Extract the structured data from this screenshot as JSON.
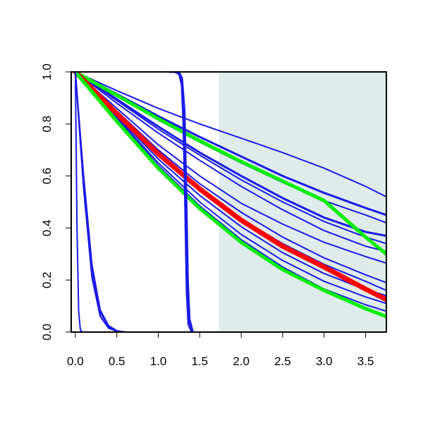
{
  "chart_data": {
    "type": "line",
    "title": "",
    "xlabel": "",
    "ylabel": "",
    "xlim": [
      -0.05,
      3.75
    ],
    "ylim": [
      0,
      1
    ],
    "x_ticks": [
      0.0,
      0.5,
      1.0,
      1.5,
      2.0,
      2.5,
      3.0,
      3.5
    ],
    "x_tick_labels": [
      "0.0",
      "0.5",
      "1.0",
      "1.5",
      "2.0",
      "2.5",
      "3.0",
      "3.5"
    ],
    "y_ticks": [
      0.0,
      0.2,
      0.4,
      0.6,
      0.8,
      1.0
    ],
    "y_tick_labels": [
      "0.0",
      "0.2",
      "0.4",
      "0.6",
      "0.8",
      "1.0"
    ],
    "grid": false,
    "legend": "none",
    "shaded_region": {
      "x": [
        1.73,
        3.75
      ],
      "color": "#dfeceb"
    },
    "colors": {
      "blue": "#1a1ae6",
      "red": "#ff0000",
      "green": "#00ee00"
    },
    "series": [
      {
        "color": "blue",
        "width": 2,
        "x": [
          0,
          0.5,
          1,
          1.5,
          2,
          2.5,
          3,
          3.5,
          3.75
        ],
        "y": [
          1.0,
          0.928,
          0.86,
          0.8,
          0.745,
          0.69,
          0.63,
          0.56,
          0.52
        ]
      },
      {
        "color": "blue",
        "width": 3,
        "x": [
          0,
          0.5,
          1,
          1.5,
          2,
          2.5,
          3,
          3.5,
          3.75
        ],
        "y": [
          1.0,
          0.915,
          0.83,
          0.75,
          0.675,
          0.6,
          0.535,
          0.477,
          0.45
        ]
      },
      {
        "color": "blue",
        "width": 2,
        "x": [
          0,
          0.5,
          1,
          1.5,
          2,
          2.5,
          3,
          3.5,
          3.75
        ],
        "y": [
          1.0,
          0.908,
          0.815,
          0.73,
          0.65,
          0.575,
          0.505,
          0.45,
          0.42
        ]
      },
      {
        "color": "blue",
        "width": 3,
        "x": [
          0,
          0.5,
          1,
          1.5,
          2,
          2.5,
          3,
          3.5,
          3.75
        ],
        "y": [
          1.0,
          0.895,
          0.79,
          0.69,
          0.6,
          0.515,
          0.44,
          0.385,
          0.37
        ]
      },
      {
        "color": "blue",
        "width": 2,
        "x": [
          0,
          0.5,
          1,
          1.5,
          2,
          2.5,
          3,
          3.5,
          3.75
        ],
        "y": [
          1.0,
          0.89,
          0.78,
          0.68,
          0.585,
          0.5,
          0.425,
          0.365,
          0.34
        ]
      },
      {
        "color": "blue",
        "width": 2,
        "x": [
          0,
          0.5,
          1,
          1.5,
          2,
          2.5,
          3,
          3.5,
          3.75
        ],
        "y": [
          1.0,
          0.88,
          0.765,
          0.66,
          0.56,
          0.47,
          0.39,
          0.33,
          0.31
        ]
      },
      {
        "color": "blue",
        "width": 2,
        "x": [
          0,
          0.5,
          1,
          1.5,
          2,
          2.5,
          3,
          3.5,
          3.75
        ],
        "y": [
          1.0,
          0.86,
          0.72,
          0.6,
          0.495,
          0.415,
          0.345,
          0.29,
          0.265
        ]
      },
      {
        "color": "blue",
        "width": 2,
        "x": [
          0,
          0.5,
          1,
          1.5,
          2,
          2.5,
          3,
          3.5,
          3.75
        ],
        "y": [
          1.0,
          0.85,
          0.7,
          0.57,
          0.46,
          0.365,
          0.285,
          0.22,
          0.19
        ]
      },
      {
        "color": "blue",
        "width": 2,
        "x": [
          0,
          0.5,
          1,
          1.5,
          2,
          2.5,
          3,
          3.5,
          3.75
        ],
        "y": [
          1.0,
          0.84,
          0.685,
          0.55,
          0.435,
          0.34,
          0.26,
          0.195,
          0.16
        ]
      },
      {
        "color": "blue",
        "width": 2,
        "x": [
          0,
          0.5,
          1,
          1.5,
          2,
          2.5,
          3,
          3.5,
          3.75
        ],
        "y": [
          1.0,
          0.83,
          0.665,
          0.525,
          0.405,
          0.305,
          0.225,
          0.163,
          0.14
        ]
      },
      {
        "color": "blue",
        "width": 2,
        "x": [
          0,
          0.5,
          1,
          1.5,
          2,
          2.5,
          3,
          3.5,
          3.75
        ],
        "y": [
          1.0,
          0.825,
          0.65,
          0.5,
          0.375,
          0.275,
          0.195,
          0.135,
          0.11
        ]
      },
      {
        "color": "blue",
        "width": 2,
        "x": [
          0,
          0.5,
          1,
          1.5,
          2,
          2.5,
          3,
          3.5,
          3.75
        ],
        "y": [
          1.0,
          0.82,
          0.64,
          0.485,
          0.355,
          0.25,
          0.165,
          0.105,
          0.08
        ]
      },
      {
        "color": "green",
        "width": 5,
        "x": [
          0,
          0.5,
          1,
          1.5,
          2,
          2.5,
          3,
          3.5,
          3.75
        ],
        "y": [
          1.0,
          0.91,
          0.82,
          0.735,
          0.655,
          0.58,
          0.505,
          0.365,
          0.3
        ]
      },
      {
        "color": "red",
        "width": 7,
        "x": [
          0,
          0.5,
          1,
          1.5,
          2,
          2.5,
          3,
          3.5,
          3.75
        ],
        "y": [
          1.0,
          0.84,
          0.685,
          0.55,
          0.43,
          0.33,
          0.25,
          0.165,
          0.125
        ]
      },
      {
        "color": "green",
        "width": 5,
        "x": [
          0,
          0.5,
          1,
          1.5,
          2,
          2.5,
          3,
          3.5,
          3.75
        ],
        "y": [
          1.0,
          0.81,
          0.63,
          0.475,
          0.345,
          0.24,
          0.16,
          0.09,
          0.06
        ]
      },
      {
        "color": "blue",
        "width": 2,
        "x": [
          0,
          0.1,
          0.2,
          0.3,
          0.4,
          0.5,
          0.6
        ],
        "y": [
          1.0,
          0.55,
          0.21,
          0.06,
          0.015,
          0.003,
          0.0
        ]
      },
      {
        "color": "blue",
        "width": 2,
        "x": [
          0,
          0.1,
          0.2,
          0.3,
          0.4,
          0.5,
          0.6
        ],
        "y": [
          1.0,
          0.58,
          0.24,
          0.075,
          0.02,
          0.004,
          0.0
        ]
      },
      {
        "color": "blue",
        "width": 2,
        "x": [
          0,
          0.1,
          0.2,
          0.3,
          0.4,
          0.5,
          0.6
        ],
        "y": [
          1.0,
          0.6,
          0.26,
          0.085,
          0.025,
          0.005,
          0.0
        ]
      },
      {
        "color": "blue",
        "width": 2,
        "x": [
          0,
          0.02,
          0.04,
          0.06,
          0.08
        ],
        "y": [
          1.0,
          0.4,
          0.08,
          0.01,
          0.0
        ]
      },
      {
        "color": "blue",
        "width": 2,
        "x": [
          0,
          0.1,
          0.3,
          0.6,
          0.9,
          1.1,
          1.2,
          1.25,
          1.28,
          1.3,
          1.32,
          1.34,
          1.36,
          1.4,
          1.6,
          3.75
        ],
        "y": [
          1.0,
          1.0,
          1.0,
          1.0,
          1.0,
          1.0,
          0.999,
          0.99,
          0.95,
          0.8,
          0.5,
          0.15,
          0.03,
          0.0,
          0.0,
          0.0
        ]
      },
      {
        "color": "blue",
        "width": 2,
        "x": [
          0,
          0.1,
          0.3,
          0.6,
          0.9,
          1.1,
          1.2,
          1.25,
          1.28,
          1.31,
          1.33,
          1.35,
          1.37,
          1.41,
          1.6,
          3.75
        ],
        "y": [
          1.0,
          1.0,
          1.0,
          1.0,
          1.0,
          1.0,
          0.999,
          0.995,
          0.97,
          0.82,
          0.52,
          0.17,
          0.04,
          0.0,
          0.0,
          0.0
        ]
      },
      {
        "color": "blue",
        "width": 2,
        "x": [
          0,
          0.1,
          0.3,
          0.6,
          0.9,
          1.1,
          1.2,
          1.26,
          1.29,
          1.32,
          1.34,
          1.36,
          1.38,
          1.42,
          1.6,
          3.75
        ],
        "y": [
          1.0,
          1.0,
          1.0,
          1.0,
          1.0,
          1.0,
          0.999,
          0.995,
          0.975,
          0.85,
          0.55,
          0.2,
          0.05,
          0.0,
          0.0,
          0.0
        ]
      }
    ]
  }
}
